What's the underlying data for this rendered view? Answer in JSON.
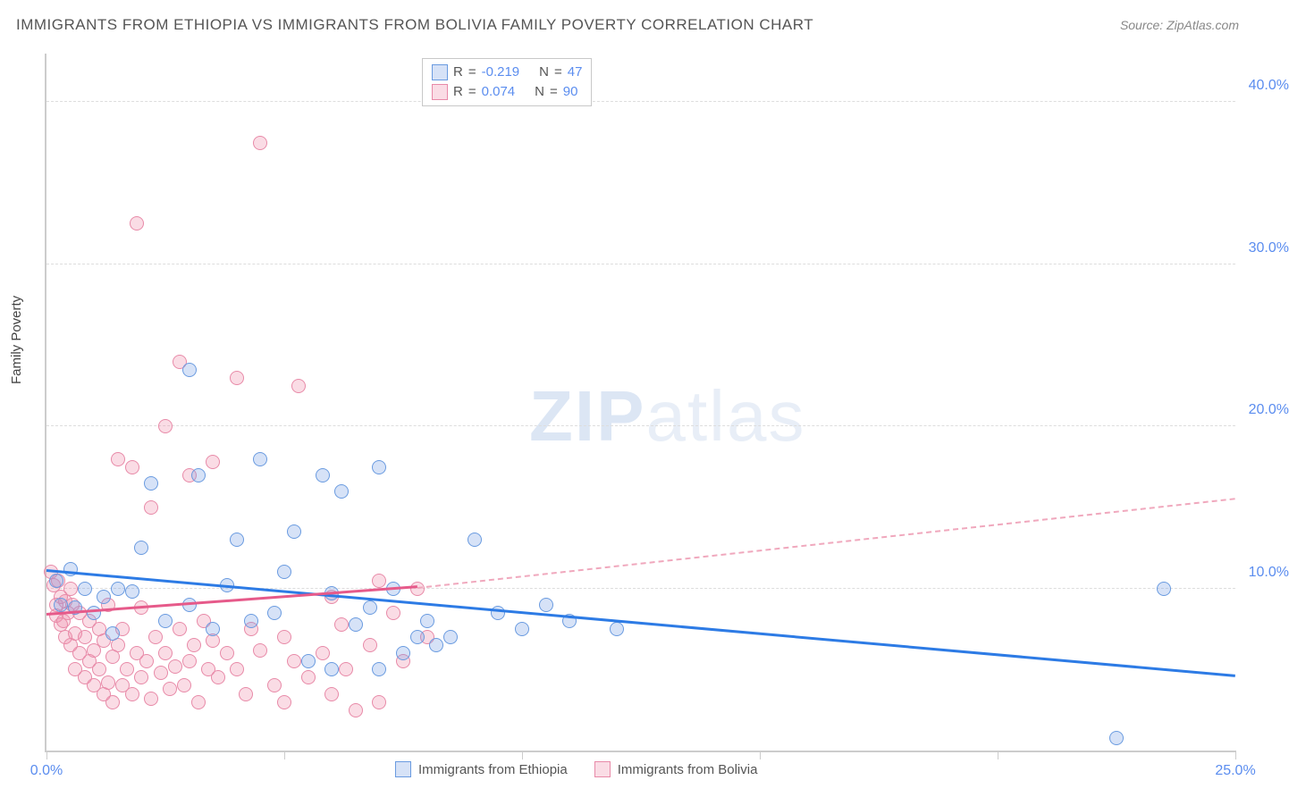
{
  "title": "IMMIGRANTS FROM ETHIOPIA VS IMMIGRANTS FROM BOLIVIA FAMILY POVERTY CORRELATION CHART",
  "source": "Source: ZipAtlas.com",
  "watermark_a": "ZIP",
  "watermark_b": "atlas",
  "ylabel": "Family Poverty",
  "chart": {
    "type": "scatter",
    "background_color": "#ffffff",
    "grid_color": "#dddddd",
    "axis_color": "#cccccc",
    "xlim": [
      0,
      25
    ],
    "ylim": [
      0,
      43
    ],
    "xticks": [
      0,
      5,
      10,
      15,
      20,
      25
    ],
    "xtick_labels": [
      "0.0%",
      "",
      "",
      "",
      "",
      "25.0%"
    ],
    "yticks": [
      10,
      20,
      30,
      40
    ],
    "ytick_labels": [
      "10.0%",
      "20.0%",
      "30.0%",
      "40.0%"
    ],
    "marker_radius": 8,
    "marker_border_width": 1.5,
    "label_fontsize": 15,
    "tick_fontsize": 16,
    "tick_color": "#5b8def"
  },
  "series": {
    "ethiopia": {
      "label": "Immigrants from Ethiopia",
      "fill": "rgba(120,160,230,0.30)",
      "stroke": "#6a9be0",
      "r_value": "-0.219",
      "n_value": "47",
      "trend": {
        "x1": 0,
        "y1": 11.0,
        "x2": 25,
        "y2": 4.5,
        "color": "#2d7be5",
        "width": 3,
        "dash": false
      },
      "points": [
        [
          0.2,
          10.5
        ],
        [
          0.3,
          9.0
        ],
        [
          0.5,
          11.2
        ],
        [
          0.6,
          8.8
        ],
        [
          0.8,
          10.0
        ],
        [
          1.0,
          8.5
        ],
        [
          1.2,
          9.5
        ],
        [
          1.4,
          7.2
        ],
        [
          1.5,
          10.0
        ],
        [
          1.8,
          9.8
        ],
        [
          2.0,
          12.5
        ],
        [
          2.2,
          16.5
        ],
        [
          2.5,
          8.0
        ],
        [
          3.0,
          23.5
        ],
        [
          3.0,
          9.0
        ],
        [
          3.2,
          17.0
        ],
        [
          3.5,
          7.5
        ],
        [
          3.8,
          10.2
        ],
        [
          4.0,
          13.0
        ],
        [
          4.3,
          8.0
        ],
        [
          4.5,
          18.0
        ],
        [
          4.8,
          8.5
        ],
        [
          5.0,
          11.0
        ],
        [
          5.2,
          13.5
        ],
        [
          5.5,
          5.5
        ],
        [
          5.8,
          17.0
        ],
        [
          6.0,
          9.7
        ],
        [
          6.0,
          5.0
        ],
        [
          6.2,
          16.0
        ],
        [
          6.5,
          7.8
        ],
        [
          6.8,
          8.8
        ],
        [
          7.0,
          17.5
        ],
        [
          7.0,
          5.0
        ],
        [
          7.3,
          10.0
        ],
        [
          7.5,
          6.0
        ],
        [
          7.8,
          7.0
        ],
        [
          8.0,
          8.0
        ],
        [
          8.2,
          6.5
        ],
        [
          8.5,
          7.0
        ],
        [
          9.0,
          13.0
        ],
        [
          9.5,
          8.5
        ],
        [
          10.0,
          7.5
        ],
        [
          10.5,
          9.0
        ],
        [
          11.0,
          8.0
        ],
        [
          12.0,
          7.5
        ],
        [
          22.5,
          0.8
        ],
        [
          23.5,
          10.0
        ]
      ]
    },
    "bolivia": {
      "label": "Immigrants from Bolivia",
      "fill": "rgba(240,140,170,0.30)",
      "stroke": "#e88aa8",
      "r_value": "0.074",
      "n_value": "90",
      "trend_solid": {
        "x1": 0,
        "y1": 8.3,
        "x2": 7.8,
        "y2": 10.0,
        "color": "#e65a8a",
        "width": 3,
        "dash": false
      },
      "trend_dash": {
        "x1": 7.8,
        "y1": 10.0,
        "x2": 25,
        "y2": 15.5,
        "color": "#f0a8bd",
        "width": 2,
        "dash": true
      },
      "points": [
        [
          0.1,
          11.0
        ],
        [
          0.15,
          10.2
        ],
        [
          0.2,
          9.0
        ],
        [
          0.2,
          8.3
        ],
        [
          0.25,
          10.5
        ],
        [
          0.3,
          9.5
        ],
        [
          0.3,
          7.8
        ],
        [
          0.35,
          8.0
        ],
        [
          0.4,
          9.2
        ],
        [
          0.4,
          7.0
        ],
        [
          0.45,
          8.5
        ],
        [
          0.5,
          6.5
        ],
        [
          0.5,
          10.0
        ],
        [
          0.55,
          9.0
        ],
        [
          0.6,
          7.2
        ],
        [
          0.6,
          5.0
        ],
        [
          0.7,
          6.0
        ],
        [
          0.7,
          8.5
        ],
        [
          0.8,
          4.5
        ],
        [
          0.8,
          7.0
        ],
        [
          0.9,
          5.5
        ],
        [
          0.9,
          8.0
        ],
        [
          1.0,
          6.2
        ],
        [
          1.0,
          4.0
        ],
        [
          1.1,
          7.5
        ],
        [
          1.1,
          5.0
        ],
        [
          1.2,
          3.5
        ],
        [
          1.2,
          6.8
        ],
        [
          1.3,
          9.0
        ],
        [
          1.3,
          4.2
        ],
        [
          1.4,
          5.8
        ],
        [
          1.4,
          3.0
        ],
        [
          1.5,
          6.5
        ],
        [
          1.5,
          18.0
        ],
        [
          1.6,
          4.0
        ],
        [
          1.6,
          7.5
        ],
        [
          1.7,
          5.0
        ],
        [
          1.8,
          3.5
        ],
        [
          1.8,
          17.5
        ],
        [
          1.9,
          6.0
        ],
        [
          1.9,
          32.5
        ],
        [
          2.0,
          4.5
        ],
        [
          2.0,
          8.8
        ],
        [
          2.1,
          5.5
        ],
        [
          2.2,
          3.2
        ],
        [
          2.2,
          15.0
        ],
        [
          2.3,
          7.0
        ],
        [
          2.4,
          4.8
        ],
        [
          2.5,
          6.0
        ],
        [
          2.5,
          20.0
        ],
        [
          2.6,
          3.8
        ],
        [
          2.7,
          5.2
        ],
        [
          2.8,
          24.0
        ],
        [
          2.8,
          7.5
        ],
        [
          2.9,
          4.0
        ],
        [
          3.0,
          17.0
        ],
        [
          3.0,
          5.5
        ],
        [
          3.1,
          6.5
        ],
        [
          3.2,
          3.0
        ],
        [
          3.3,
          8.0
        ],
        [
          3.4,
          5.0
        ],
        [
          3.5,
          17.8
        ],
        [
          3.5,
          6.8
        ],
        [
          3.6,
          4.5
        ],
        [
          3.8,
          6.0
        ],
        [
          4.0,
          5.0
        ],
        [
          4.0,
          23.0
        ],
        [
          4.2,
          3.5
        ],
        [
          4.3,
          7.5
        ],
        [
          4.5,
          6.2
        ],
        [
          4.5,
          37.5
        ],
        [
          4.8,
          4.0
        ],
        [
          5.0,
          3.0
        ],
        [
          5.0,
          7.0
        ],
        [
          5.2,
          5.5
        ],
        [
          5.3,
          22.5
        ],
        [
          5.5,
          4.5
        ],
        [
          5.8,
          6.0
        ],
        [
          6.0,
          3.5
        ],
        [
          6.0,
          9.5
        ],
        [
          6.2,
          7.8
        ],
        [
          6.3,
          5.0
        ],
        [
          6.5,
          2.5
        ],
        [
          6.8,
          6.5
        ],
        [
          7.0,
          10.5
        ],
        [
          7.0,
          3.0
        ],
        [
          7.3,
          8.5
        ],
        [
          7.5,
          5.5
        ],
        [
          7.8,
          10.0
        ],
        [
          8.0,
          7.0
        ]
      ]
    }
  },
  "legend_labels": {
    "r": "R",
    "n": "N",
    "eq": "="
  }
}
